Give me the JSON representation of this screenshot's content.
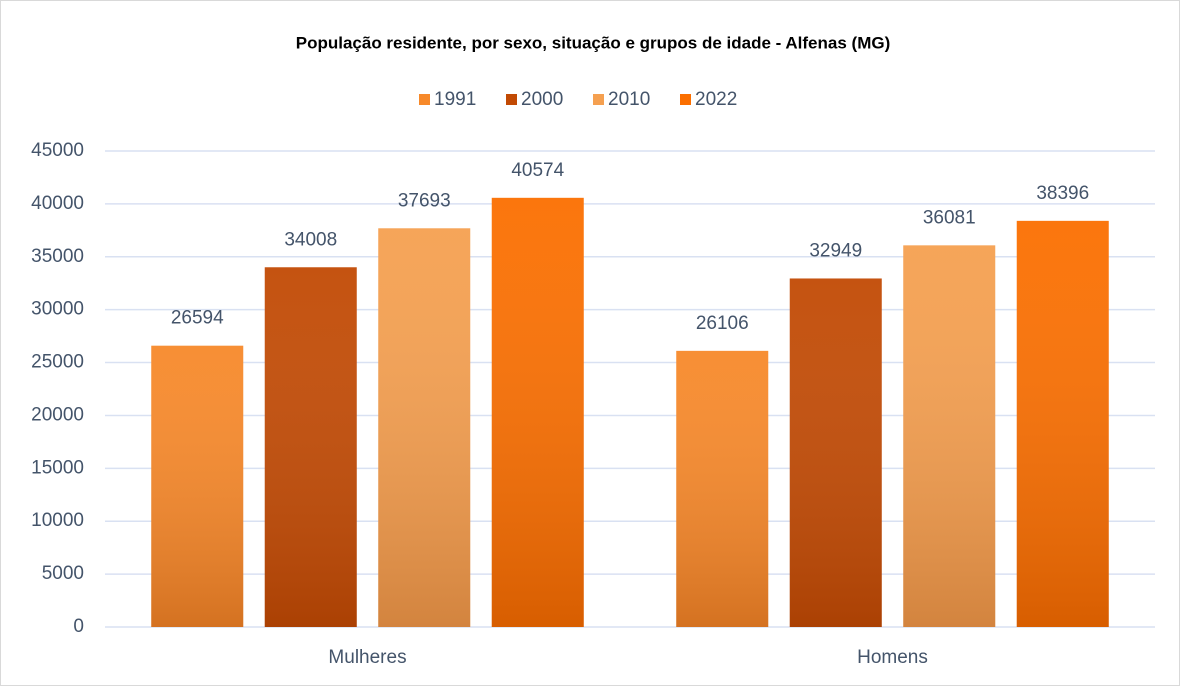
{
  "chart_data": {
    "type": "bar",
    "title": "População residente, por sexo, situação e grupos de idade - Alfenas (MG)",
    "categories": [
      "Mulheres",
      "Homens"
    ],
    "series": [
      {
        "name": "1991",
        "color": "#f7892a",
        "values": [
          26594,
          26106
        ]
      },
      {
        "name": "2000",
        "color": "#c24a04",
        "values": [
          34008,
          32949
        ]
      },
      {
        "name": "2010",
        "color": "#f5a050",
        "values": [
          37693,
          36081
        ]
      },
      {
        "name": "2022",
        "color": "#fb6f00",
        "values": [
          40574,
          38396
        ]
      }
    ],
    "ylim": [
      0,
      45000
    ],
    "yticks": [
      0,
      5000,
      10000,
      15000,
      20000,
      25000,
      30000,
      35000,
      40000,
      45000
    ],
    "grid": true,
    "legend": "top"
  }
}
